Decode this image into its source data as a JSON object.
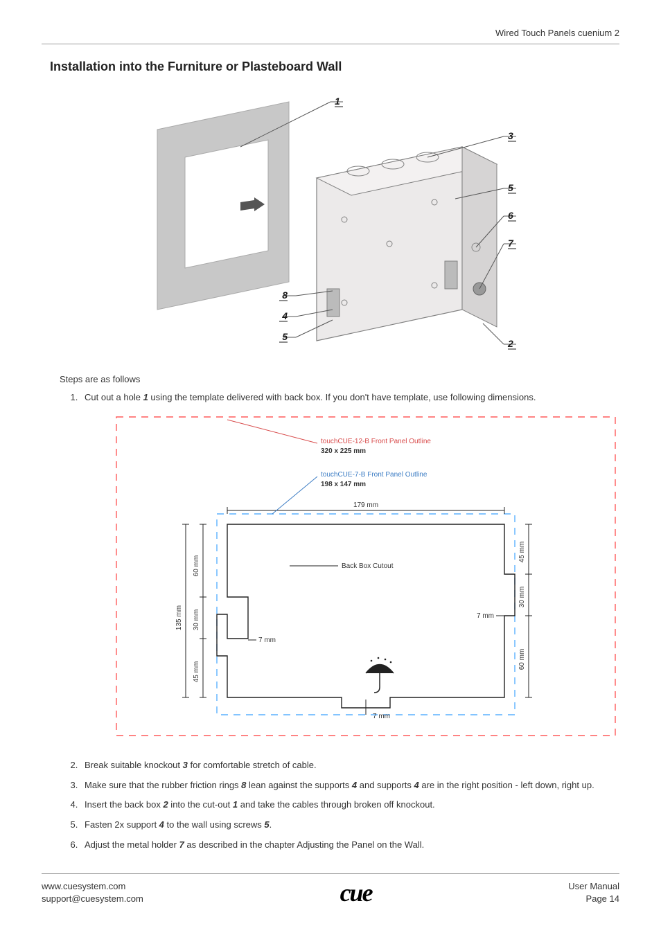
{
  "header": {
    "doc_title": "Wired Touch Panels cuenium 2"
  },
  "title": "Installation into the Furniture or Plasteboard Wall",
  "illus": {
    "callouts": [
      "1",
      "3",
      "5",
      "6",
      "7",
      "8",
      "4",
      "5",
      "2"
    ],
    "label_color": "#1a1a1a",
    "leader_color": "#555555",
    "box_fill": "#eceaea",
    "box_stroke": "#808080",
    "wall_fill": "#c8c8c8"
  },
  "intro": "Steps are as follows",
  "steps": [
    {
      "n": 1,
      "pre": "Cut out a hole ",
      "b1": "1",
      "post": " using the template delivered with back box. If you don't have template, use following dimensions."
    },
    {
      "n": 2,
      "pre": "Break suitable knockout ",
      "b1": "3",
      "post": " for comfortable stretch of cable."
    },
    {
      "n": 3,
      "pre": "Make sure that the rubber friction rings ",
      "b1": "8",
      "mid1": " lean against the supports ",
      "b2": "4",
      "mid2": " and supports ",
      "b3": "4",
      "post": " are in the right position - left down, right up."
    },
    {
      "n": 4,
      "pre": "Insert the back box ",
      "b1": "2",
      "mid1": " into the cut-out ",
      "b2": "1",
      "post": " and take the cables through broken off knockout."
    },
    {
      "n": 5,
      "pre": "Fasten 2x support ",
      "b1": "4",
      "mid1": " to the wall using screws ",
      "b2": "5",
      "post": "."
    },
    {
      "n": 6,
      "pre": "Adjust the metal holder ",
      "b1": "7",
      "post": " as described in the chapter Adjusting the Panel on the Wall."
    }
  ],
  "cutout": {
    "outer_color": "#ff5a5a",
    "inner_color": "#5ab0ff",
    "text_color": "#333333",
    "bold_color": "#333333",
    "link_blue": "#3b7cc4",
    "link_red": "#d84a4a",
    "label_outer_a": "touchCUE-12-B Front Panel Outline",
    "label_outer_b": "320 x 225 mm",
    "label_inner_a": "touchCUE-7-B Front Panel Outline",
    "label_inner_b": "198 x 147 mm",
    "label_bbcut": "Back Box Cutout",
    "d179": "179 mm",
    "d135": "135 mm",
    "d60": "60 mm",
    "d45": "45 mm",
    "d30": "30 mm",
    "d7": "7 mm"
  },
  "footer": {
    "url": "www.cuesystem.com",
    "email": "support@cuesystem.com",
    "logo": "cue",
    "right_a": "User Manual",
    "right_b": "Page 14"
  }
}
